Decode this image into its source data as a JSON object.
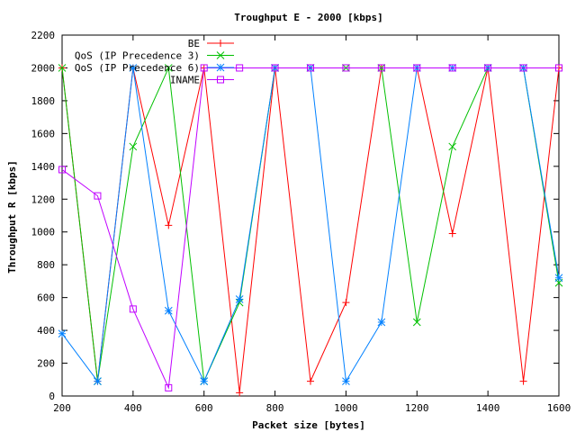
{
  "chart_data": {
    "type": "line",
    "title": "Troughput E - 2000 [kbps]",
    "xlabel": "Packet size [bytes]",
    "ylabel": "Throughput R [kbps]",
    "xlim": [
      200,
      1600
    ],
    "ylim": [
      0,
      2200
    ],
    "xticks": [
      200,
      400,
      600,
      800,
      1000,
      1200,
      1400,
      1600
    ],
    "yticks": [
      0,
      200,
      400,
      600,
      800,
      1000,
      1200,
      1400,
      1600,
      1800,
      2000,
      2200
    ],
    "legend_position": "top-left-inside",
    "grid": false,
    "x": [
      200,
      300,
      400,
      500,
      600,
      700,
      800,
      900,
      1000,
      1100,
      1200,
      1300,
      1400,
      1500,
      1600
    ],
    "series": [
      {
        "name": "BE",
        "color": "#ff0000",
        "marker": "plus",
        "values": [
          2000,
          90,
          2000,
          1040,
          2000,
          20,
          2000,
          90,
          570,
          2000,
          2000,
          990,
          2000,
          90,
          2000
        ]
      },
      {
        "name": "QoS (IP Precedence 3)",
        "color": "#00c000",
        "marker": "cross",
        "values": [
          2000,
          90,
          1520,
          2000,
          90,
          570,
          2000,
          2000,
          2000,
          2000,
          450,
          1520,
          2000,
          2000,
          690
        ]
      },
      {
        "name": "QoS (IP Precedence 6)",
        "color": "#0080ff",
        "marker": "star",
        "values": [
          380,
          90,
          2000,
          520,
          90,
          590,
          2000,
          2000,
          90,
          450,
          2000,
          2000,
          2000,
          2000,
          720
        ]
      },
      {
        "name": "INAME",
        "color": "#c000ff",
        "marker": "box",
        "values": [
          1380,
          1220,
          530,
          50,
          2000,
          2000,
          2000,
          2000,
          2000,
          2000,
          2000,
          2000,
          2000,
          2000,
          2000
        ]
      }
    ]
  }
}
